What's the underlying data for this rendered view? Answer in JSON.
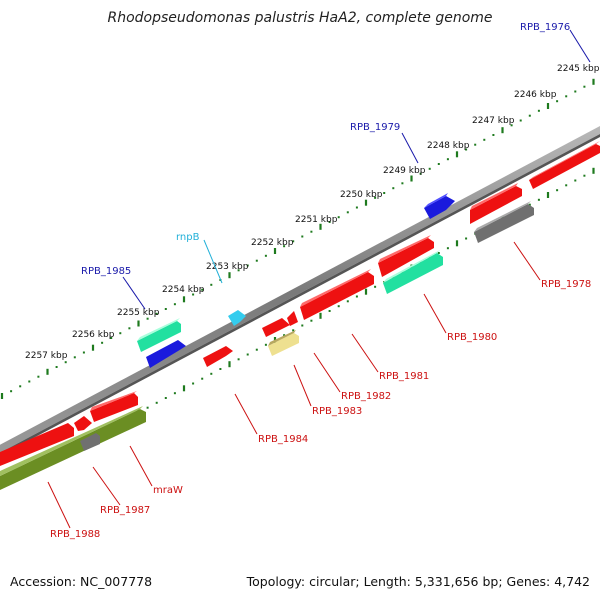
{
  "title": "Rhodopseudomonas palustris HaA2, complete genome",
  "footer": {
    "accession": "Accession: NC_007778",
    "summary": "Topology: circular; Length: 5,331,656 bp; Genes: 4,742"
  },
  "colors": {
    "backbone": "#808080",
    "ticks": "#1e7a1e",
    "forward_label": "#1a1aaa",
    "reverse_label": "#cc1111",
    "rna_label": "#22b0d8",
    "red_gene": "#ee1111",
    "blue_gene": "#1a1add",
    "teal_gene": "#22e0a0",
    "gray_gene": "#707070",
    "olive_gene": "#6b8e23",
    "yellow_gene": "#eee090",
    "cyan_gene": "#33ccee"
  },
  "kbp_labels": [
    "2245 kbp",
    "2246 kbp",
    "2247 kbp",
    "2248 kbp",
    "2249 kbp",
    "2250 kbp",
    "2251 kbp",
    "2252 kbp",
    "2253 kbp",
    "2254 kbp",
    "2255 kbp",
    "2256 kbp",
    "2257 kbp"
  ],
  "gene_labels": [
    {
      "name": "RPB_1976",
      "strand": "forward"
    },
    {
      "name": "RPB_1979",
      "strand": "forward"
    },
    {
      "name": "rnpB",
      "strand": "rna"
    },
    {
      "name": "RPB_1985",
      "strand": "forward"
    },
    {
      "name": "RPB_1978",
      "strand": "reverse"
    },
    {
      "name": "RPB_1980",
      "strand": "reverse"
    },
    {
      "name": "RPB_1981",
      "strand": "reverse"
    },
    {
      "name": "RPB_1982",
      "strand": "reverse"
    },
    {
      "name": "RPB_1983",
      "strand": "reverse"
    },
    {
      "name": "RPB_1984",
      "strand": "reverse"
    },
    {
      "name": "mraW",
      "strand": "reverse"
    },
    {
      "name": "RPB_1987",
      "strand": "reverse"
    },
    {
      "name": "RPB_1988",
      "strand": "reverse"
    }
  ]
}
